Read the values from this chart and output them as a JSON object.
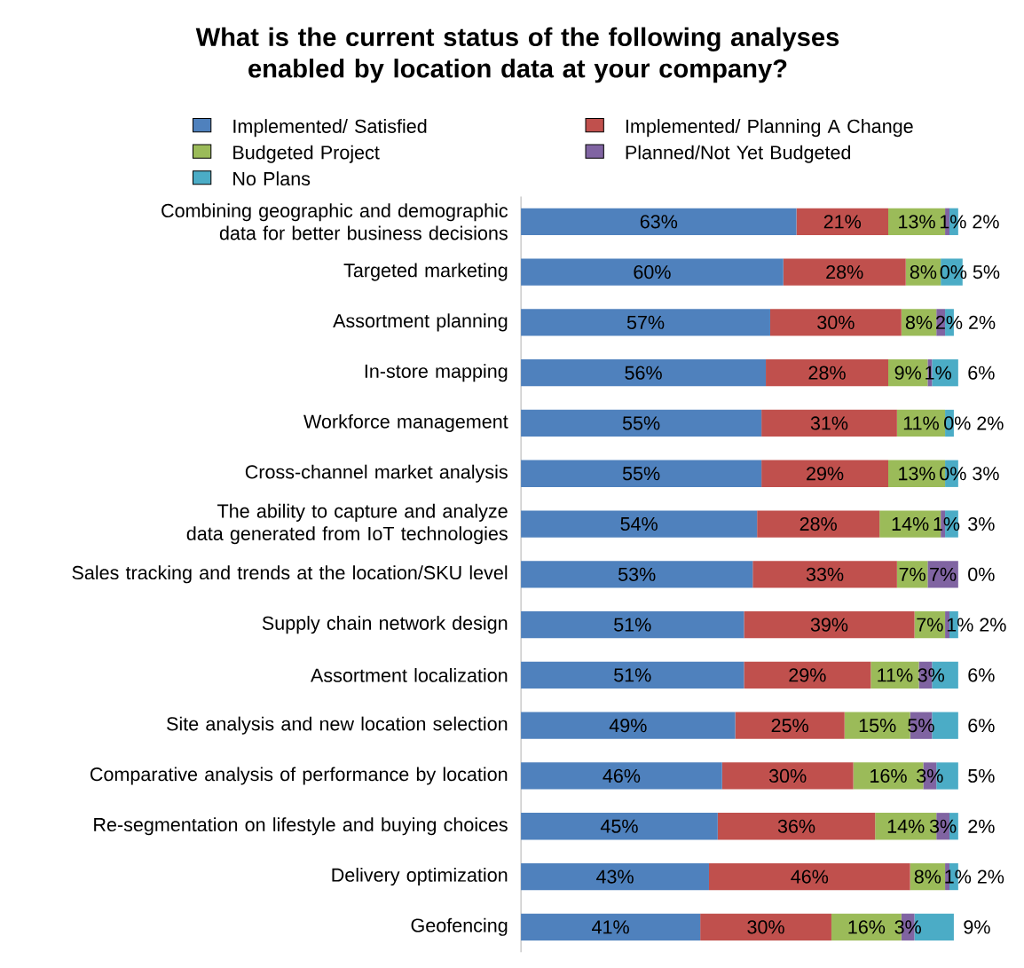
{
  "chart_data": {
    "type": "bar",
    "orientation": "horizontal",
    "stacked": true,
    "legend": "top",
    "tick_labels": "y",
    "xlim": [
      0,
      101
    ],
    "title": "What is the current status of the following analyses enabled by location data at your company?",
    "categories": [
      "Combining geographic and demographic data for better business decisions",
      "Targeted marketing",
      "Assortment planning",
      "In-store mapping",
      "Workforce management",
      "Cross-channel market analysis",
      "The ability to capture and analyze data generated from IoT technologies",
      "Sales tracking and trends at the location/SKU level",
      "Supply chain network design",
      "Assortment localization",
      "Site analysis and new location selection",
      "Comparative analysis of performance by location",
      "Re-segmentation on lifestyle and buying choices",
      "Delivery optimization",
      "Geofencing"
    ],
    "series": [
      {
        "name": "Implemented/ Satisfied",
        "color": "#4f81bd",
        "values": [
          63,
          60,
          57,
          56,
          55,
          55,
          54,
          53,
          51,
          51,
          49,
          46,
          45,
          43,
          41
        ],
        "value_labels": [
          "63%",
          "60%",
          "57%",
          "56%",
          "55%",
          "55%",
          "54%",
          "53%",
          "51%",
          "51%",
          "49%",
          "46%",
          "45%",
          "43%",
          "41%"
        ]
      },
      {
        "name": "Implemented/ Planning A Change",
        "color": "#c0504d",
        "values": [
          21,
          28,
          30,
          28,
          31,
          29,
          28,
          33,
          39,
          29,
          25,
          30,
          36,
          46,
          30
        ],
        "value_labels": [
          "21%",
          "28%",
          "30%",
          "28%",
          "31%",
          "29%",
          "28%",
          "33%",
          "39%",
          "29%",
          "25%",
          "30%",
          "36%",
          "46%",
          "30%"
        ]
      },
      {
        "name": "Budgeted Project",
        "color": "#9bbb59",
        "values": [
          13,
          8,
          8,
          9,
          11,
          13,
          14,
          7,
          7,
          11,
          15,
          16,
          14,
          8,
          16
        ],
        "value_labels": [
          "13%",
          "8%",
          "8%",
          "9%",
          "11%",
          "13%",
          "14%",
          "7%",
          "7%",
          "11%",
          "15%",
          "16%",
          "14%",
          "8%",
          "16%"
        ]
      },
      {
        "name": "Planned/Not Yet Budgeted",
        "color": "#8064a2",
        "values": [
          1,
          0,
          2,
          1,
          0,
          0,
          1,
          7,
          1,
          3,
          5,
          3,
          3,
          1,
          3
        ],
        "value_labels": [
          "1%",
          "0%",
          "2%",
          "1%",
          "0%",
          "0%",
          "1%",
          "7%",
          "1%",
          "3%",
          "5%",
          "3%",
          "3%",
          "1%",
          "3%"
        ]
      },
      {
        "name": "No Plans",
        "color": "#4bacc6",
        "values": [
          2,
          5,
          2,
          6,
          2,
          3,
          3,
          0,
          2,
          6,
          6,
          5,
          2,
          2,
          9
        ],
        "value_labels": [
          "2%",
          "5%",
          "2%",
          "6%",
          "2%",
          "3%",
          "3%",
          "0%",
          "2%",
          "6%",
          "6%",
          "5%",
          "2%",
          "2%",
          "9%"
        ]
      }
    ]
  }
}
